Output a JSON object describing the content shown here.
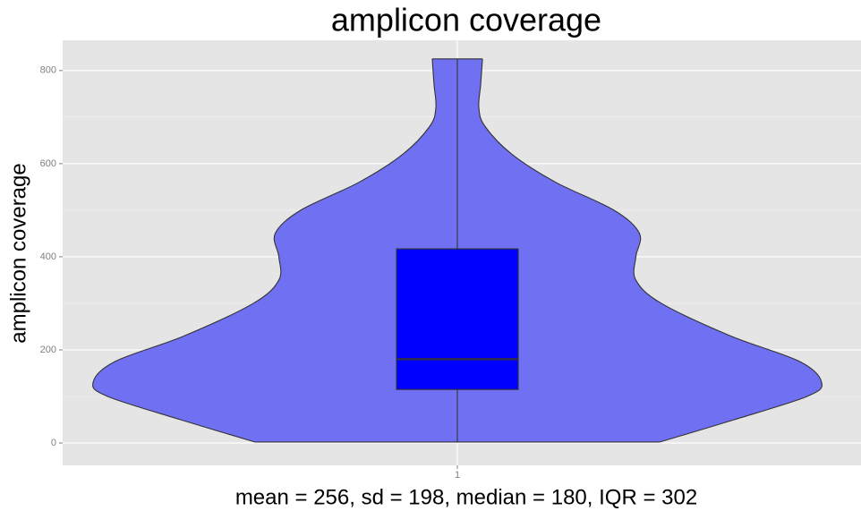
{
  "chart_data": {
    "type": "violin",
    "title": "amplicon coverage",
    "y_label": "amplicon coverage",
    "caption": "mean = 256,  sd = 198,  median = 180,  IQR = 302",
    "categories": [
      "1"
    ],
    "violin": {
      "color": "#7070f2",
      "y": [
        2,
        50,
        100,
        130,
        175,
        230,
        300,
        350,
        400,
        450,
        500,
        560,
        620,
        680,
        720,
        770,
        825
      ],
      "density": [
        0.555,
        0.76,
        0.96,
        1.0,
        0.94,
        0.75,
        0.56,
        0.49,
        0.49,
        0.5,
        0.43,
        0.27,
        0.15,
        0.076,
        0.059,
        0.064,
        0.069
      ]
    },
    "box": {
      "color": "#0000ff",
      "min": 2,
      "q1": 115,
      "median": 180,
      "q3": 417,
      "max": 825
    },
    "ylim": [
      -48,
      865
    ],
    "yticks": [
      0,
      200,
      400,
      600,
      800
    ],
    "minor_yticks": [
      100,
      300,
      500,
      700
    ],
    "grid": true
  }
}
